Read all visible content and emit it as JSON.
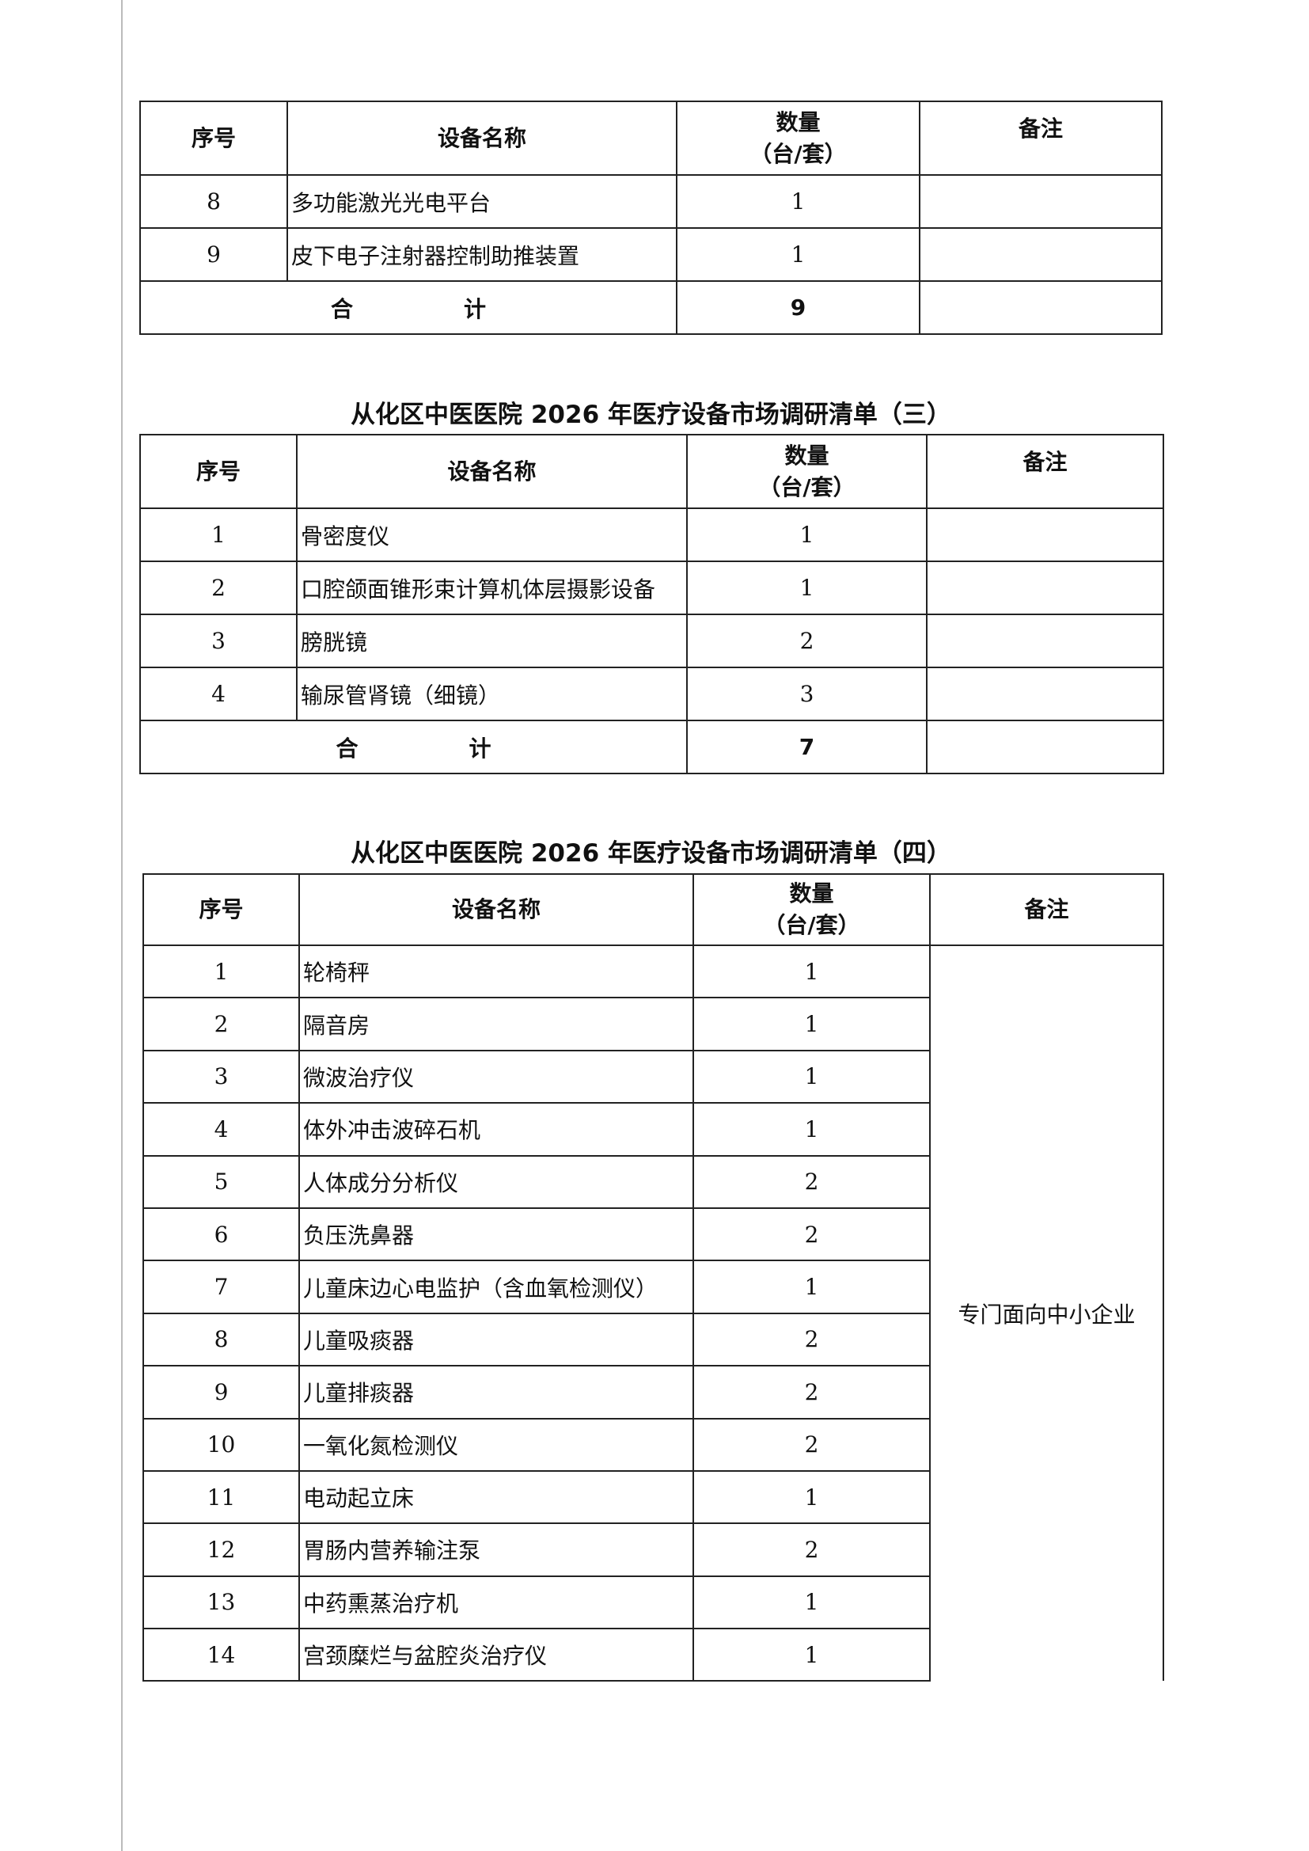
{
  "headers": {
    "index": "序号",
    "name": "设备名称",
    "qty_line1": "数量",
    "qty_line2": "（台/套）",
    "remark": "备注"
  },
  "table2_tail": {
    "rows": [
      {
        "index": "8",
        "name": "多功能激光光电平台",
        "qty": "1",
        "remark": ""
      },
      {
        "index": "9",
        "name": "皮下电子注射器控制助推装置",
        "qty": "1",
        "remark": ""
      }
    ],
    "total_label_1": "合",
    "total_label_2": "计",
    "total_qty": "9"
  },
  "table3": {
    "title": "从化区中医医院 2026 年医疗设备市场调研清单（三）",
    "rows": [
      {
        "index": "1",
        "name": "骨密度仪",
        "qty": "1",
        "remark": ""
      },
      {
        "index": "2",
        "name": "口腔颌面锥形束计算机体层摄影设备",
        "qty": "1",
        "remark": ""
      },
      {
        "index": "3",
        "name": "膀胱镜",
        "qty": "2",
        "remark": ""
      },
      {
        "index": "4",
        "name": "输尿管肾镜（细镜）",
        "qty": "3",
        "remark": ""
      }
    ],
    "total_label_1": "合",
    "total_label_2": "计",
    "total_qty": "7"
  },
  "table4": {
    "title": "从化区中医医院 2026 年医疗设备市场调研清单（四）",
    "remark": "专门面向中小企业",
    "rows": [
      {
        "index": "1",
        "name": "轮椅秤",
        "qty": "1"
      },
      {
        "index": "2",
        "name": "隔音房",
        "qty": "1"
      },
      {
        "index": "3",
        "name": "微波治疗仪",
        "qty": "1"
      },
      {
        "index": "4",
        "name": "体外冲击波碎石机",
        "qty": "1"
      },
      {
        "index": "5",
        "name": "人体成分分析仪",
        "qty": "2"
      },
      {
        "index": "6",
        "name": "负压洗鼻器",
        "qty": "2"
      },
      {
        "index": "7",
        "name": "儿童床边心电监护（含血氧检测仪）",
        "qty": "1"
      },
      {
        "index": "8",
        "name": "儿童吸痰器",
        "qty": "2"
      },
      {
        "index": "9",
        "name": "儿童排痰器",
        "qty": "2"
      },
      {
        "index": "10",
        "name": "一氧化氮检测仪",
        "qty": "2"
      },
      {
        "index": "11",
        "name": "电动起立床",
        "qty": "1"
      },
      {
        "index": "12",
        "name": "胃肠内营养输注泵",
        "qty": "2"
      },
      {
        "index": "13",
        "name": "中药熏蒸治疗机",
        "qty": "1"
      },
      {
        "index": "14",
        "name": "宫颈糜烂与盆腔炎治疗仪",
        "qty": "1"
      }
    ]
  }
}
